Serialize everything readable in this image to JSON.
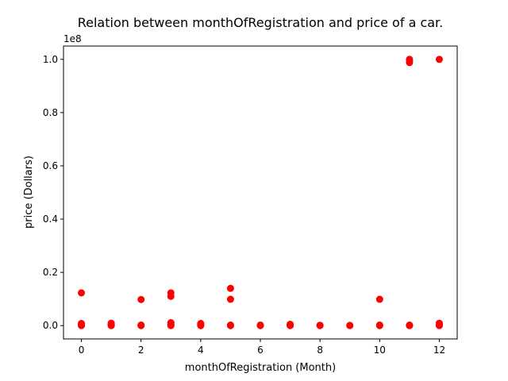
{
  "chart_data": {
    "type": "scatter",
    "title": "Relation between monthOfRegistration and price of a car.",
    "xlabel": "monthOfRegistration (Month)",
    "ylabel": "price (Dollars)",
    "y_offset_label": "1e8",
    "xlim": [
      -0.6,
      12.6
    ],
    "ylim": [
      -5000000,
      105000000
    ],
    "x_ticks": [
      0,
      2,
      4,
      6,
      8,
      10,
      12
    ],
    "x_tick_labels": [
      "0",
      "2",
      "4",
      "6",
      "8",
      "10",
      "12"
    ],
    "y_ticks": [
      0,
      20000000,
      40000000,
      60000000,
      80000000,
      100000000
    ],
    "y_tick_labels": [
      "0.0",
      "0.2",
      "0.4",
      "0.6",
      "0.8",
      "1.0"
    ],
    "grid": false,
    "marker_color": "#ff0000",
    "points": [
      {
        "x": 0,
        "y": 0
      },
      {
        "x": 0,
        "y": 150000
      },
      {
        "x": 0,
        "y": 400000
      },
      {
        "x": 0,
        "y": 800000
      },
      {
        "x": 0,
        "y": 12300000
      },
      {
        "x": 1,
        "y": 0
      },
      {
        "x": 1,
        "y": 200000
      },
      {
        "x": 1,
        "y": 500000
      },
      {
        "x": 1,
        "y": 900000
      },
      {
        "x": 2,
        "y": 0
      },
      {
        "x": 2,
        "y": 200000
      },
      {
        "x": 2,
        "y": 9800000
      },
      {
        "x": 3,
        "y": 0
      },
      {
        "x": 3,
        "y": 300000
      },
      {
        "x": 3,
        "y": 700000
      },
      {
        "x": 3,
        "y": 1100000
      },
      {
        "x": 3,
        "y": 11000000
      },
      {
        "x": 3,
        "y": 12300000
      },
      {
        "x": 4,
        "y": 0
      },
      {
        "x": 4,
        "y": 200000
      },
      {
        "x": 4,
        "y": 500000
      },
      {
        "x": 4,
        "y": 800000
      },
      {
        "x": 5,
        "y": 0
      },
      {
        "x": 5,
        "y": 200000
      },
      {
        "x": 5,
        "y": 9900000
      },
      {
        "x": 5,
        "y": 14000000
      },
      {
        "x": 6,
        "y": 0
      },
      {
        "x": 6,
        "y": 200000
      },
      {
        "x": 7,
        "y": 0
      },
      {
        "x": 7,
        "y": 200000
      },
      {
        "x": 7,
        "y": 500000
      },
      {
        "x": 8,
        "y": 0
      },
      {
        "x": 8,
        "y": 150000
      },
      {
        "x": 9,
        "y": 0
      },
      {
        "x": 9,
        "y": 100000
      },
      {
        "x": 10,
        "y": 0
      },
      {
        "x": 10,
        "y": 200000
      },
      {
        "x": 10,
        "y": 9900000
      },
      {
        "x": 11,
        "y": 0
      },
      {
        "x": 11,
        "y": 200000
      },
      {
        "x": 11,
        "y": 98800000
      },
      {
        "x": 11,
        "y": 99500000
      },
      {
        "x": 11,
        "y": 100000000
      },
      {
        "x": 12,
        "y": 0
      },
      {
        "x": 12,
        "y": 200000
      },
      {
        "x": 12,
        "y": 500000
      },
      {
        "x": 12,
        "y": 900000
      },
      {
        "x": 12,
        "y": 100000000
      }
    ]
  }
}
